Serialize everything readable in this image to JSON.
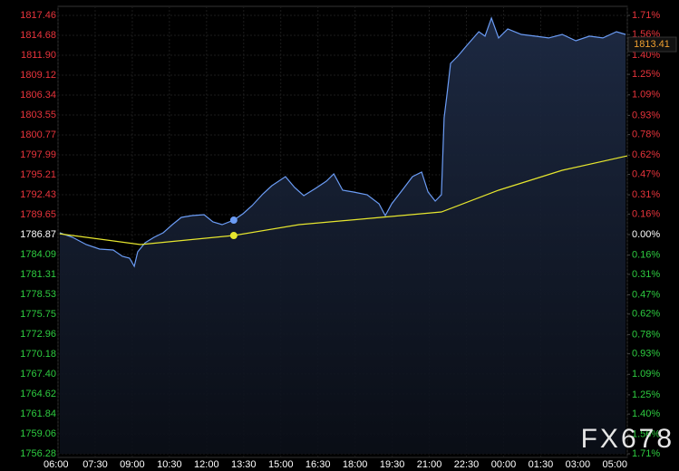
{
  "chart_data": {
    "type": "line",
    "watermark": "FX678",
    "last_price": 1813.41,
    "grid": true,
    "up_color": "#e8343c",
    "down_color": "#2ecc40",
    "zero_color": "#ffffff",
    "xlim": [
      0,
      23
    ],
    "xticks": [
      {
        "value": 0,
        "label": "06:00"
      },
      {
        "value": 1.5,
        "label": "07:30"
      },
      {
        "value": 3,
        "label": "09:00"
      },
      {
        "value": 4.5,
        "label": "10:30"
      },
      {
        "value": 6,
        "label": "12:00"
      },
      {
        "value": 7.5,
        "label": "13:30"
      },
      {
        "value": 9,
        "label": "15:00"
      },
      {
        "value": 10.5,
        "label": "16:30"
      },
      {
        "value": 12,
        "label": "18:00"
      },
      {
        "value": 13.5,
        "label": "19:30"
      },
      {
        "value": 15,
        "label": "21:00"
      },
      {
        "value": 16.5,
        "label": "22:30"
      },
      {
        "value": 18,
        "label": "00:00"
      },
      {
        "value": 19.5,
        "label": "01:30"
      },
      {
        "value": 21,
        "label": "03:00"
      },
      {
        "value": 23,
        "label": "05:00"
      }
    ],
    "ylim": [
      1756.28,
      1817.46
    ],
    "yticks": [
      1817.46,
      1814.68,
      {
        "value": 1811.9,
        "label": "1811.90"
      },
      1809.12,
      1806.34,
      1803.55,
      1800.77,
      1797.99,
      1795.21,
      1792.43,
      1789.65,
      1786.87,
      1784.09,
      1781.31,
      1778.53,
      1775.75,
      1772.96,
      1770.18,
      {
        "value": 1767.4,
        "label": "1767.40"
      },
      1764.62,
      1761.84,
      1759.06,
      1756.28
    ],
    "y2lim": [
      -1.71,
      1.71
    ],
    "y2ticks": [
      {
        "value": 1.71,
        "label": "1.71%"
      },
      {
        "value": 1.56,
        "label": "1.56%"
      },
      {
        "value": 1.4,
        "label": "1.40%"
      },
      {
        "value": 1.25,
        "label": "1.25%"
      },
      {
        "value": 1.09,
        "label": "1.09%"
      },
      {
        "value": 0.93,
        "label": "0.93%"
      },
      {
        "value": 0.78,
        "label": "0.78%"
      },
      {
        "value": 0.62,
        "label": "0.62%"
      },
      {
        "value": 0.47,
        "label": "0.47%"
      },
      {
        "value": 0.31,
        "label": "0.31%"
      },
      {
        "value": 0.16,
        "label": "0.16%"
      },
      {
        "value": 0,
        "label": "0.00%"
      },
      {
        "value": -0.16,
        "label": "0.16%"
      },
      {
        "value": -0.31,
        "label": "0.31%"
      },
      {
        "value": -0.47,
        "label": "0.47%"
      },
      {
        "value": -0.62,
        "label": "0.62%"
      },
      {
        "value": -0.78,
        "label": "0.78%"
      },
      {
        "value": -0.93,
        "label": "0.93%"
      },
      {
        "value": -1.09,
        "label": "1.09%"
      },
      {
        "value": -1.25,
        "label": "1.25%"
      },
      {
        "value": -1.4,
        "label": "1.40%"
      },
      {
        "value": -1.56,
        "label": "1.56%"
      },
      {
        "value": -1.71,
        "label": "1.71%"
      }
    ],
    "series": [
      {
        "color": "#6b9cf5",
        "area": true,
        "marker_index": 18,
        "x": [
          0.07,
          0.59,
          1.14,
          1.68,
          2.23,
          2.6,
          2.89,
          3.08,
          3.22,
          3.52,
          3.88,
          4.25,
          4.62,
          4.98,
          5.42,
          5.9,
          6.26,
          6.63,
          7.1,
          7.47,
          7.84,
          8.28,
          8.64,
          9.19,
          9.56,
          9.93,
          10.4,
          10.84,
          11.14,
          11.5,
          11.94,
          12.49,
          12.97,
          13.22,
          13.48,
          13.96,
          14.32,
          14.69,
          14.95,
          15.24,
          15.49,
          15.6,
          15.71,
          15.86,
          16.15,
          16.52,
          17.0,
          17.25,
          17.51,
          17.8,
          18.17,
          18.72,
          19.27,
          19.82,
          20.37,
          20.92,
          21.47,
          22.01,
          22.56,
          22.93
        ],
        "values": [
          1787.12,
          1786.49,
          1785.48,
          1784.85,
          1784.72,
          1783.84,
          1783.58,
          1782.45,
          1784.47,
          1785.73,
          1786.49,
          1787.12,
          1788.26,
          1789.27,
          1789.52,
          1789.65,
          1788.64,
          1788.26,
          1788.89,
          1789.78,
          1790.92,
          1792.56,
          1793.7,
          1794.96,
          1793.44,
          1792.31,
          1793.32,
          1794.33,
          1795.34,
          1793.06,
          1792.81,
          1792.43,
          1791.17,
          1789.52,
          1791.17,
          1793.32,
          1794.96,
          1795.59,
          1792.81,
          1791.55,
          1792.43,
          1803.17,
          1806.34,
          1810.76,
          1811.77,
          1813.29,
          1815.19,
          1814.56,
          1817.09,
          1814.31,
          1815.57,
          1814.81,
          1814.56,
          1814.31,
          1814.81,
          1813.92,
          1814.56,
          1814.31,
          1815.19,
          1814.81
        ]
      },
      {
        "color": "#e6e62e",
        "area": false,
        "marker_index": 2,
        "x": [
          0.07,
          3.33,
          7.1,
          9.74,
          13.04,
          15.49,
          17.8,
          20.37,
          23
        ],
        "values": [
          1786.99,
          1785.48,
          1786.74,
          1788.26,
          1789.27,
          1790.03,
          1793.06,
          1795.84,
          1797.86
        ]
      }
    ]
  }
}
